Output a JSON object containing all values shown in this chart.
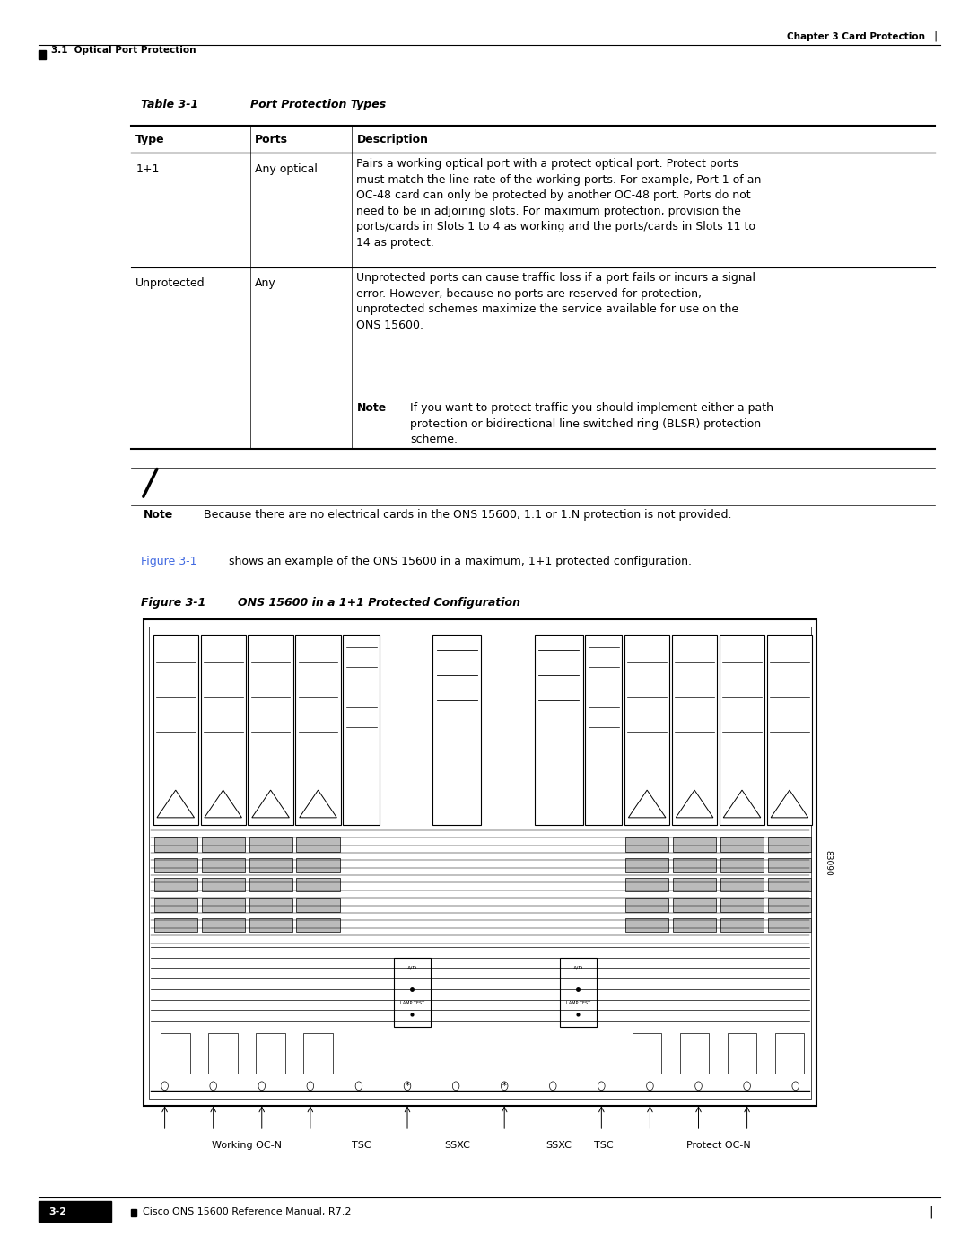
{
  "page_bg": "#ffffff",
  "header_text": "Chapter 3 Card Protection",
  "section_label": "3.1  Optical Port Protection",
  "table_title": "Table 3-1",
  "table_title_italic": "Port Protection Types",
  "col_headers": [
    "Type",
    "Ports",
    "Description"
  ],
  "row1_type": "1+1",
  "row1_ports": "Any optical",
  "row1_desc": "Pairs a working optical port with a protect optical port. Protect ports\nmust match the line rate of the working ports. For example, Port 1 of an\nOC-48 card can only be protected by another OC-48 port. Ports do not\nneed to be in adjoining slots. For maximum protection, provision the\nports/cards in Slots 1 to 4 as working and the ports/cards in Slots 11 to\n14 as protect.",
  "row2_type": "Unprotected",
  "row2_ports": "Any",
  "row2_desc": "Unprotected ports can cause traffic loss if a port fails or incurs a signal\nerror. However, because no ports are reserved for protection,\nunprotected schemes maximize the service available for use on the\nONS 15600.",
  "row2_note_label": "Note",
  "row2_note_text": "If you want to protect traffic you should implement either a path\nprotection or bidirectional line switched ring (BLSR) protection\nscheme.",
  "note_text": "Because there are no electrical cards in the ONS 15600, 1:1 or 1:N protection is not provided.",
  "figure_ref_text1": "Figure 3-1",
  "figure_ref_text2": " shows an example of the ONS 15600 in a maximum, 1+1 protected configuration.",
  "figure_title": "Figure 3-1",
  "figure_title_desc": "ONS 15600 in a 1+1 Protected Configuration",
  "figure_labels": [
    "Working OC-N",
    "TSC",
    "SSXC",
    "SSXC",
    "TSC",
    "Protect OC-N"
  ],
  "footer_text": "Cisco ONS 15600 Reference Manual, R7.2",
  "footer_page": "3-2",
  "figure_ref_color": "#4169E1",
  "text_color": "#000000"
}
